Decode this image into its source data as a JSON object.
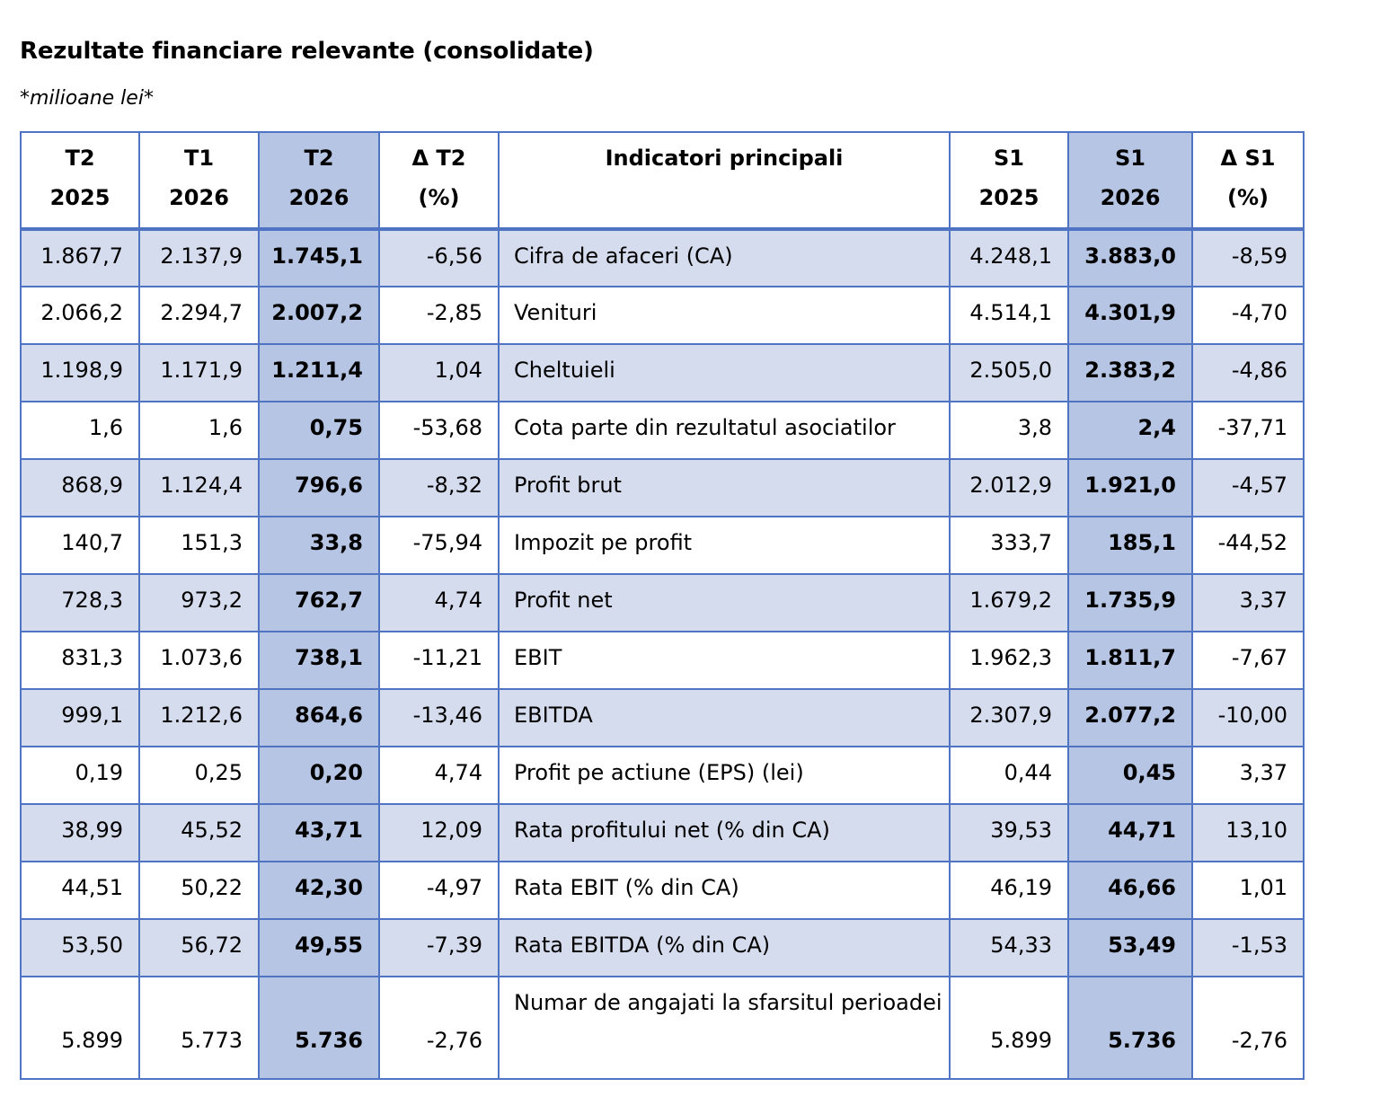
{
  "title": "Rezultate financiare relevante (consolidate)",
  "subtitle": "*milioane lei*",
  "table": {
    "headers": [
      {
        "line1": "T2",
        "line2": "2025"
      },
      {
        "line1": "T1",
        "line2": "2026"
      },
      {
        "line1": "T2",
        "line2": "2026"
      },
      {
        "line1": "Δ T2",
        "line2": "(%)"
      },
      {
        "line1": "Indicatori principali",
        "line2": ""
      },
      {
        "line1": "S1",
        "line2": "2025"
      },
      {
        "line1": "S1",
        "line2": "2026"
      },
      {
        "line1": "Δ S1",
        "line2": "(%)"
      }
    ],
    "rows": [
      {
        "t2_2025": "1.867,7",
        "t1_2026": "2.137,9",
        "t2_2026": "1.745,1",
        "d_t2": "-6,56",
        "indicator": "Cifra de afaceri (CA)",
        "s1_2025": "4.248,1",
        "s1_2026": "3.883,0",
        "d_s1": "-8,59"
      },
      {
        "t2_2025": "2.066,2",
        "t1_2026": "2.294,7",
        "t2_2026": "2.007,2",
        "d_t2": "-2,85",
        "indicator": "Venituri",
        "s1_2025": "4.514,1",
        "s1_2026": "4.301,9",
        "d_s1": "-4,70"
      },
      {
        "t2_2025": "1.198,9",
        "t1_2026": "1.171,9",
        "t2_2026": "1.211,4",
        "d_t2": "1,04",
        "indicator": "Cheltuieli",
        "s1_2025": "2.505,0",
        "s1_2026": "2.383,2",
        "d_s1": "-4,86"
      },
      {
        "t2_2025": "1,6",
        "t1_2026": "1,6",
        "t2_2026": "0,75",
        "d_t2": "-53,68",
        "indicator": "Cota parte din rezultatul asociatilor",
        "s1_2025": "3,8",
        "s1_2026": "2,4",
        "d_s1": "-37,71"
      },
      {
        "t2_2025": "868,9",
        "t1_2026": "1.124,4",
        "t2_2026": "796,6",
        "d_t2": "-8,32",
        "indicator": "Profit brut",
        "s1_2025": "2.012,9",
        "s1_2026": "1.921,0",
        "d_s1": "-4,57"
      },
      {
        "t2_2025": "140,7",
        "t1_2026": "151,3",
        "t2_2026": "33,8",
        "d_t2": "-75,94",
        "indicator": "Impozit pe profit",
        "s1_2025": "333,7",
        "s1_2026": "185,1",
        "d_s1": "-44,52"
      },
      {
        "t2_2025": "728,3",
        "t1_2026": "973,2",
        "t2_2026": "762,7",
        "d_t2": "4,74",
        "indicator": "Profit net",
        "s1_2025": "1.679,2",
        "s1_2026": "1.735,9",
        "d_s1": "3,37"
      },
      {
        "t2_2025": "831,3",
        "t1_2026": "1.073,6",
        "t2_2026": "738,1",
        "d_t2": "-11,21",
        "indicator": "EBIT",
        "s1_2025": "1.962,3",
        "s1_2026": "1.811,7",
        "d_s1": "-7,67"
      },
      {
        "t2_2025": "999,1",
        "t1_2026": "1.212,6",
        "t2_2026": "864,6",
        "d_t2": "-13,46",
        "indicator": "EBITDA",
        "s1_2025": "2.307,9",
        "s1_2026": "2.077,2",
        "d_s1": "-10,00"
      },
      {
        "t2_2025": "0,19",
        "t1_2026": "0,25",
        "t2_2026": "0,20",
        "d_t2": "4,74",
        "indicator": "Profit pe actiune (EPS) (lei)",
        "s1_2025": "0,44",
        "s1_2026": "0,45",
        "d_s1": "3,37"
      },
      {
        "t2_2025": "38,99",
        "t1_2026": "45,52",
        "t2_2026": "43,71",
        "d_t2": "12,09",
        "indicator": "Rata profitului net (% din CA)",
        "s1_2025": "39,53",
        "s1_2026": "44,71",
        "d_s1": "13,10"
      },
      {
        "t2_2025": "44,51",
        "t1_2026": "50,22",
        "t2_2026": "42,30",
        "d_t2": "-4,97",
        "indicator": "Rata EBIT (% din CA)",
        "s1_2025": "46,19",
        "s1_2026": "46,66",
        "d_s1": "1,01"
      },
      {
        "t2_2025": "53,50",
        "t1_2026": "56,72",
        "t2_2026": "49,55",
        "d_t2": "-7,39",
        "indicator": "Rata EBITDA (% din CA)",
        "s1_2025": "54,33",
        "s1_2026": "53,49",
        "d_s1": "-1,53"
      },
      {
        "t2_2025": "5.899",
        "t1_2026": "5.773",
        "t2_2026": "5.736",
        "d_t2": "-2,76",
        "indicator": "Numar de angajati la sfarsitul perioadei",
        "s1_2025": "5.899",
        "s1_2026": "5.736",
        "d_s1": "-2,76"
      }
    ]
  }
}
